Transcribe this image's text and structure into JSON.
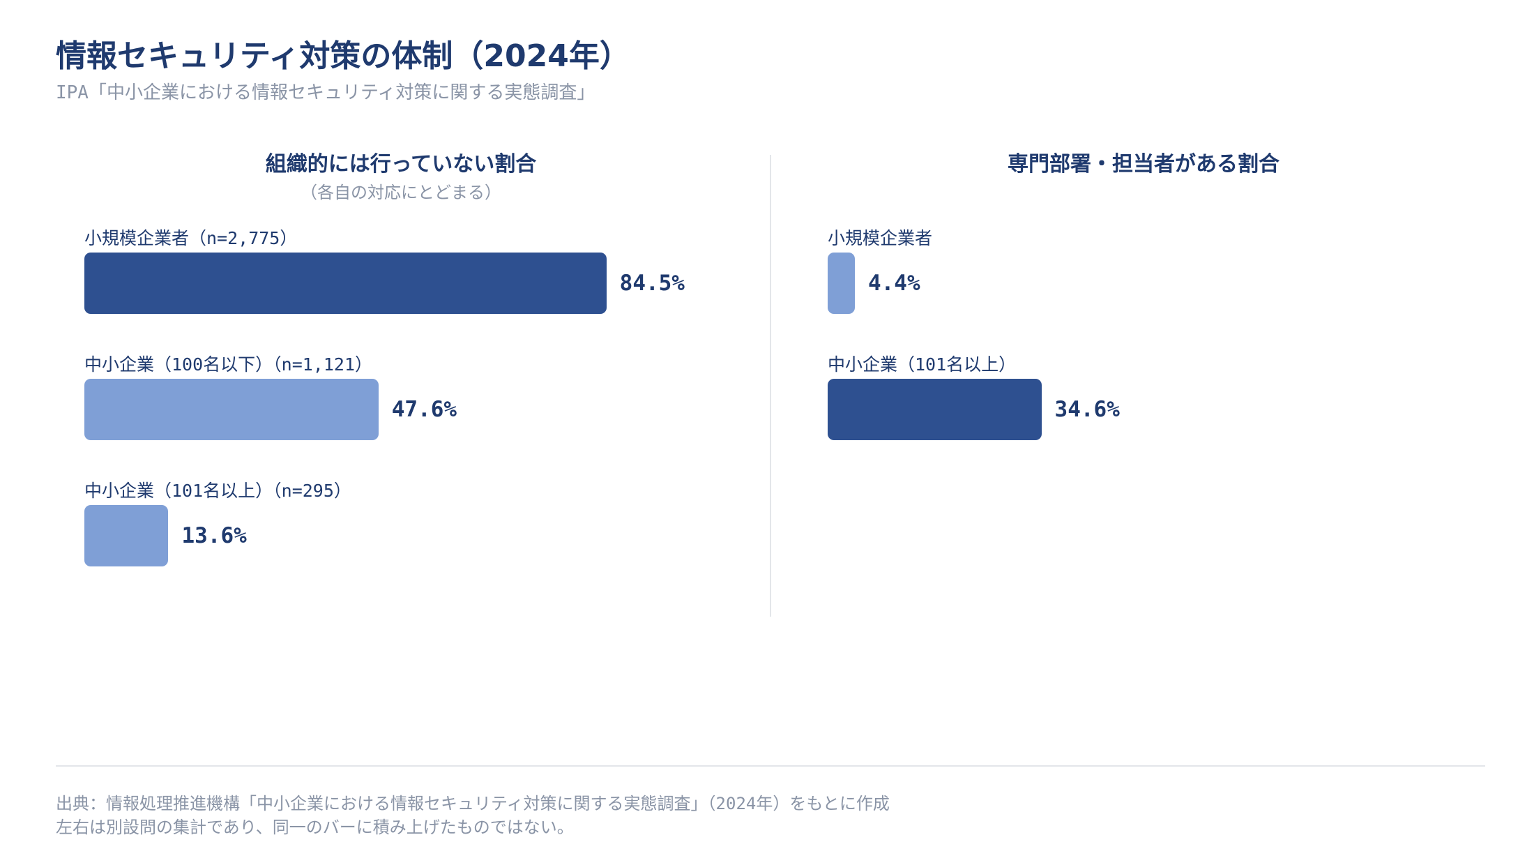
{
  "header": {
    "title": "情報セキュリティ対策の体制（2024年）",
    "subtitle": "IPA「中小企業における情報セキュリティ対策に関する実態調査」"
  },
  "colors": {
    "dark_bar": "#2e5090",
    "light_bar": "#7f9fd6",
    "text": "#1f3a6e",
    "muted": "#8a94a6"
  },
  "chart_data": [
    {
      "type": "bar",
      "orientation": "horizontal",
      "title": "組織的には行っていない割合",
      "subtitle": "（各自の対応にとどまる）",
      "categories": [
        "小規模企業者（n=2,775）",
        "中小企業（100名以下）（n=1,121）",
        "中小企業（101名以上）（n=295）"
      ],
      "values": [
        84.5,
        47.6,
        13.6
      ],
      "value_labels": [
        "84.5%",
        "47.6%",
        "13.6%"
      ],
      "bar_colors": [
        "#2e5090",
        "#7f9fd6",
        "#7f9fd6"
      ],
      "unit": "%",
      "xlim": [
        0,
        100
      ]
    },
    {
      "type": "bar",
      "orientation": "horizontal",
      "title": "専門部署・担当者がある割合",
      "categories": [
        "小規模企業者",
        "中小企業（101名以上）"
      ],
      "values": [
        4.4,
        34.6
      ],
      "value_labels": [
        "4.4%",
        "34.6%"
      ],
      "bar_colors": [
        "#7f9fd6",
        "#2e5090"
      ],
      "unit": "%",
      "xlim": [
        0,
        100
      ]
    }
  ],
  "footer": {
    "source": "出典：情報処理推進機構「中小企業における情報セキュリティ対策に関する実態調査」（2024年）をもとに作成",
    "note": "左右は別設問の集計であり、同一のバーに積み上げたものではない。"
  }
}
